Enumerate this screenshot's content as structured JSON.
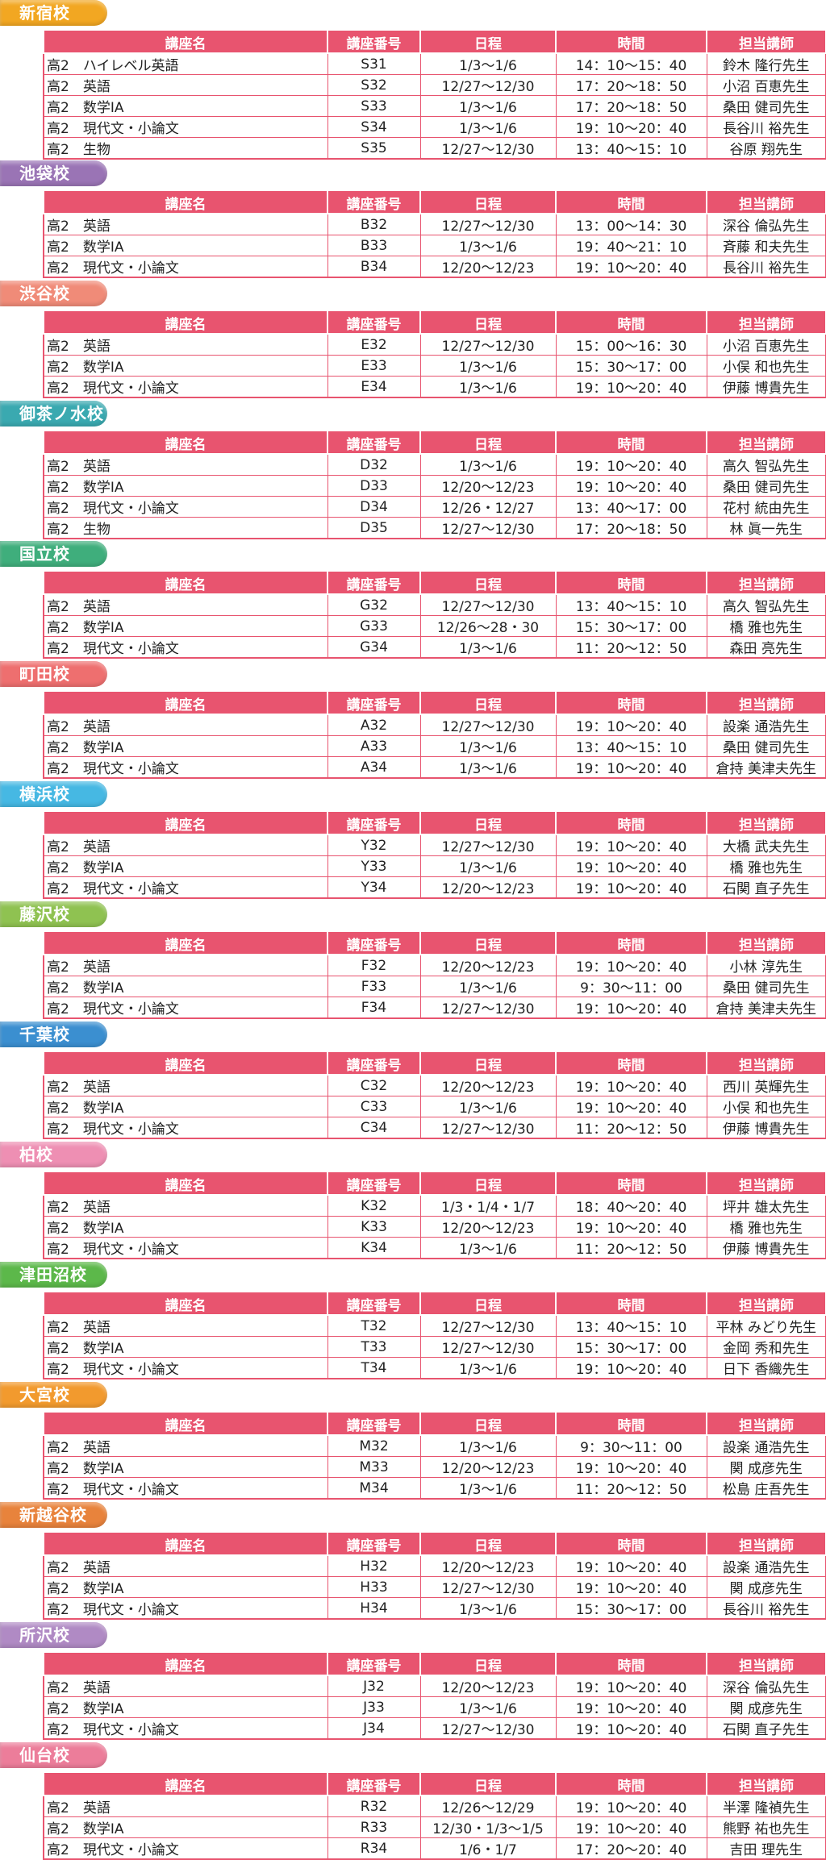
{
  "headers": [
    "講座名",
    "講座番号",
    "日程",
    "時間",
    "担当講師"
  ],
  "schools": [
    {
      "name": "新宿校",
      "color": "#f2a722",
      "rows": [
        [
          "高2　ハイレベル英語",
          "S31",
          "1/3〜1/6",
          "14：10〜15：40",
          "鈴木 隆行先生"
        ],
        [
          "高2　英語",
          "S32",
          "12/27〜12/30",
          "17：20〜18：50",
          "小沼 百恵先生"
        ],
        [
          "高2　数学ⅠA",
          "S33",
          "1/3〜1/6",
          "17：20〜18：50",
          "桑田 健司先生"
        ],
        [
          "高2　現代文・小論文",
          "S34",
          "1/3〜1/6",
          "19：10〜20：40",
          "長谷川 裕先生"
        ],
        [
          "高2　生物",
          "S35",
          "12/27〜12/30",
          "13：40〜15：10",
          "谷原 翔先生"
        ]
      ]
    },
    {
      "name": "池袋校",
      "color": "#9a74b5",
      "rows": [
        [
          "高2　英語",
          "B32",
          "12/27〜12/30",
          "13：00〜14：30",
          "深谷 倫弘先生"
        ],
        [
          "高2　数学ⅠA",
          "B33",
          "1/3〜1/6",
          "19：40〜21：10",
          "斉藤 和夫先生"
        ],
        [
          "高2　現代文・小論文",
          "B34",
          "12/20〜12/23",
          "19：10〜20：40",
          "長谷川 裕先生"
        ]
      ]
    },
    {
      "name": "渋谷校",
      "color": "#f08b78",
      "rows": [
        [
          "高2　英語",
          "E32",
          "12/27〜12/30",
          "15：00〜16：30",
          "小沼 百恵先生"
        ],
        [
          "高2　数学ⅠA",
          "E33",
          "1/3〜1/6",
          "15：30〜17：00",
          "小俣 和也先生"
        ],
        [
          "高2　現代文・小論文",
          "E34",
          "1/3〜1/6",
          "19：10〜20：40",
          "伊藤 博貴先生"
        ]
      ]
    },
    {
      "name": "御茶ノ水校",
      "color": "#3aa9b0",
      "rows": [
        [
          "高2　英語",
          "D32",
          "1/3〜1/6",
          "19：10〜20：40",
          "高久 智弘先生"
        ],
        [
          "高2　数学ⅠA",
          "D33",
          "12/20〜12/23",
          "19：10〜20：40",
          "桑田 健司先生"
        ],
        [
          "高2　現代文・小論文",
          "D34",
          "12/26・12/27",
          "13：40〜17：00",
          "花村 統由先生"
        ],
        [
          "高2　生物",
          "D35",
          "12/27〜12/30",
          "17：20〜18：50",
          "林 眞一先生"
        ]
      ]
    },
    {
      "name": "国立校",
      "color": "#3fae7c",
      "rows": [
        [
          "高2　英語",
          "G32",
          "12/27〜12/30",
          "13：40〜15：10",
          "高久 智弘先生"
        ],
        [
          "高2　数学ⅠA",
          "G33",
          "12/26〜28・30",
          "15：30〜17：00",
          "橋 雅也先生"
        ],
        [
          "高2　現代文・小論文",
          "G34",
          "1/3〜1/6",
          "11：20〜12：50",
          "森田 亮先生"
        ]
      ]
    },
    {
      "name": "町田校",
      "color": "#ee6f6f",
      "rows": [
        [
          "高2　英語",
          "A32",
          "12/27〜12/30",
          "19：10〜20：40",
          "設楽 通浩先生"
        ],
        [
          "高2　数学ⅠA",
          "A33",
          "1/3〜1/6",
          "13：40〜15：10",
          "桑田 健司先生"
        ],
        [
          "高2　現代文・小論文",
          "A34",
          "1/3〜1/6",
          "19：10〜20：40",
          "倉持 美津夫先生"
        ]
      ]
    },
    {
      "name": "横浜校",
      "color": "#46b8e3",
      "rows": [
        [
          "高2　英語",
          "Y32",
          "12/27〜12/30",
          "19：10〜20：40",
          "大橋 武夫先生"
        ],
        [
          "高2　数学ⅠA",
          "Y33",
          "1/3〜1/6",
          "19：10〜20：40",
          "橋 雅也先生"
        ],
        [
          "高2　現代文・小論文",
          "Y34",
          "12/20〜12/23",
          "19：10〜20：40",
          "石関 直子先生"
        ]
      ]
    },
    {
      "name": "藤沢校",
      "color": "#8fc251",
      "rows": [
        [
          "高2　英語",
          "F32",
          "12/20〜12/23",
          "19：10〜20：40",
          "小林 淳先生"
        ],
        [
          "高2　数学ⅠA",
          "F33",
          "1/3〜1/6",
          "9：30〜11：00",
          "桑田 健司先生"
        ],
        [
          "高2　現代文・小論文",
          "F34",
          "12/27〜12/30",
          "19：10〜20：40",
          "倉持 美津夫先生"
        ]
      ]
    },
    {
      "name": "千葉校",
      "color": "#3b8fd0",
      "rows": [
        [
          "高2　英語",
          "C32",
          "12/20〜12/23",
          "19：10〜20：40",
          "西川 英輝先生"
        ],
        [
          "高2　数学ⅠA",
          "C33",
          "1/3〜1/6",
          "19：10〜20：40",
          "小俣 和也先生"
        ],
        [
          "高2　現代文・小論文",
          "C34",
          "12/27〜12/30",
          "11：20〜12：50",
          "伊藤 博貴先生"
        ]
      ]
    },
    {
      "name": "柏校",
      "color": "#ee8fb3",
      "rows": [
        [
          "高2　英語",
          "K32",
          "1/3・1/4・1/7",
          "18：40〜20：40",
          "坪井 雄太先生"
        ],
        [
          "高2　数学ⅠA",
          "K33",
          "12/20〜12/23",
          "19：10〜20：40",
          "橋 雅也先生"
        ],
        [
          "高2　現代文・小論文",
          "K34",
          "1/3〜1/6",
          "11：20〜12：50",
          "伊藤 博貴先生"
        ]
      ]
    },
    {
      "name": "津田沼校",
      "color": "#5cb84a",
      "rows": [
        [
          "高2　英語",
          "T32",
          "12/27〜12/30",
          "13：40〜15：10",
          "平林 みどり先生"
        ],
        [
          "高2　数学ⅠA",
          "T33",
          "12/27〜12/30",
          "15：30〜17：00",
          "金岡 秀和先生"
        ],
        [
          "高2　現代文・小論文",
          "T34",
          "1/3〜1/6",
          "19：10〜20：40",
          "日下 香織先生"
        ]
      ]
    },
    {
      "name": "大宮校",
      "color": "#f29a2e",
      "rows": [
        [
          "高2　英語",
          "M32",
          "1/3〜1/6",
          "9：30〜11：00",
          "設楽 通浩先生"
        ],
        [
          "高2　数学ⅠA",
          "M33",
          "12/20〜12/23",
          "19：10〜20：40",
          "関 成彦先生"
        ],
        [
          "高2　現代文・小論文",
          "M34",
          "1/3〜1/6",
          "11：20〜12：50",
          "松島 庄吾先生"
        ]
      ]
    },
    {
      "name": "新越谷校",
      "color": "#e8833c",
      "rows": [
        [
          "高2　英語",
          "H32",
          "12/20〜12/23",
          "19：10〜20：40",
          "設楽 通浩先生"
        ],
        [
          "高2　数学ⅠA",
          "H33",
          "12/27〜12/30",
          "19：10〜20：40",
          "関 成彦先生"
        ],
        [
          "高2　現代文・小論文",
          "H34",
          "1/3〜1/6",
          "15：30〜17：00",
          "長谷川 裕先生"
        ]
      ]
    },
    {
      "name": "所沢校",
      "color": "#b08ac4",
      "rows": [
        [
          "高2　英語",
          "J32",
          "12/20〜12/23",
          "19：10〜20：40",
          "深谷 倫弘先生"
        ],
        [
          "高2　数学ⅠA",
          "J33",
          "1/3〜1/6",
          "19：10〜20：40",
          "関 成彦先生"
        ],
        [
          "高2　現代文・小論文",
          "J34",
          "12/27〜12/30",
          "19：10〜20：40",
          "石関 直子先生"
        ]
      ]
    },
    {
      "name": "仙台校",
      "color": "#ec7d9a",
      "rows": [
        [
          "高2　英語",
          "R32",
          "12/26〜12/29",
          "19：10〜20：40",
          "半澤 隆禎先生"
        ],
        [
          "高2　数学ⅠA",
          "R33",
          "12/30・1/3〜1/5",
          "19：10〜20：40",
          "熊野 祐也先生"
        ],
        [
          "高2　現代文・小論文",
          "R34",
          "1/6・1/7",
          "17：20〜20：40",
          "吉田 理先生"
        ]
      ]
    }
  ]
}
